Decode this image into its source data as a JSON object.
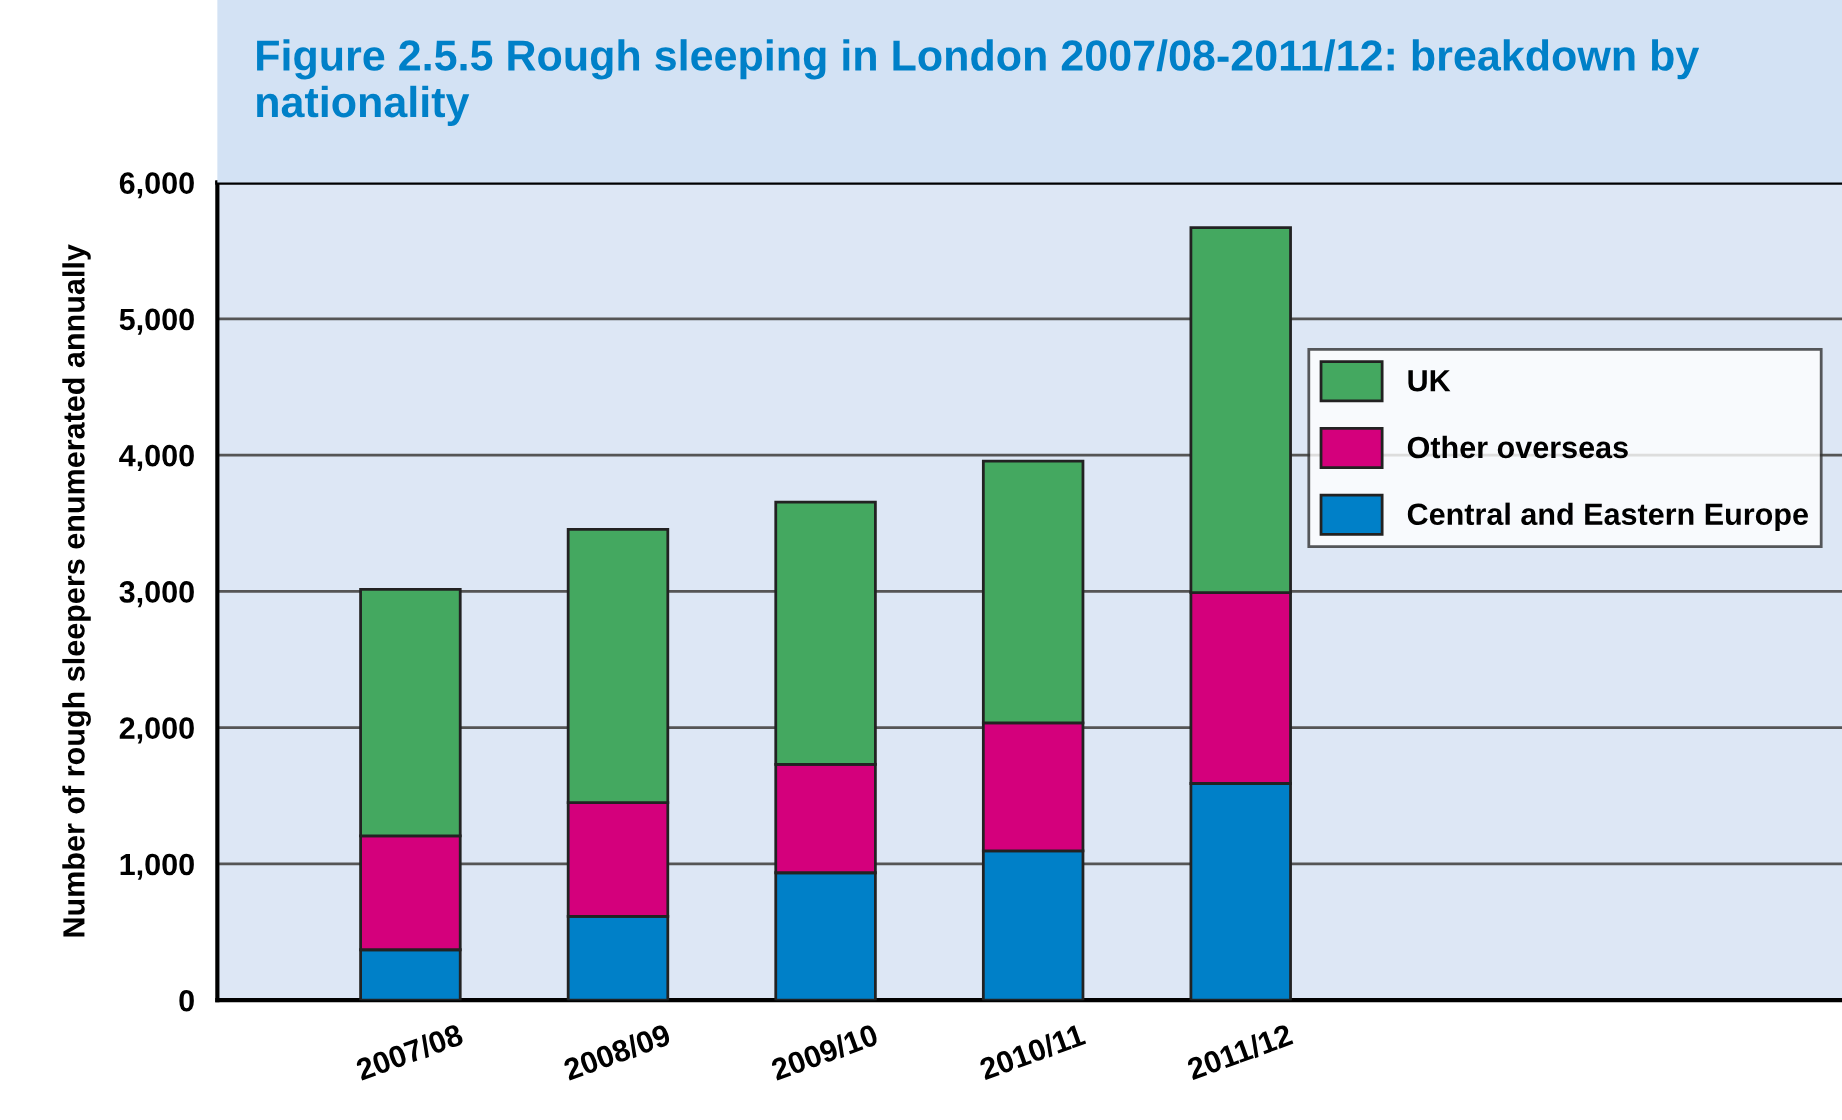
{
  "chart_data": {
    "type": "bar",
    "title": "Figure 2.5.5 Rough sleeping in London 2007/08-2011/12: breakdown by nationality",
    "ylabel": "Number of rough sleepers enumerated annually",
    "categories": [
      "2007/08",
      "2008/09",
      "2009/10",
      "2010/11",
      "2011/12"
    ],
    "stacked": true,
    "series": [
      {
        "name": "Central and Eastern Europe",
        "color": "#0080c8",
        "values": [
          370,
          615,
          935,
          1095,
          1590
        ]
      },
      {
        "name": "Other overseas",
        "color": "#d4007c",
        "values": [
          835,
          835,
          795,
          940,
          1400
        ]
      },
      {
        "name": "UK",
        "color": "#44a860",
        "values": [
          1810,
          2005,
          1925,
          1920,
          2680
        ]
      }
    ],
    "ylim": [
      0,
      6000
    ],
    "yticks": [
      {
        "value": 0,
        "label": "0"
      },
      {
        "value": 1000,
        "label": "1,000"
      },
      {
        "value": 2000,
        "label": "2,000"
      },
      {
        "value": 3000,
        "label": "3,000"
      },
      {
        "value": 4000,
        "label": "4,000"
      },
      {
        "value": 5000,
        "label": "5,000"
      },
      {
        "value": 6000,
        "label": "6,000"
      }
    ],
    "grid": "y",
    "legend": "right"
  }
}
